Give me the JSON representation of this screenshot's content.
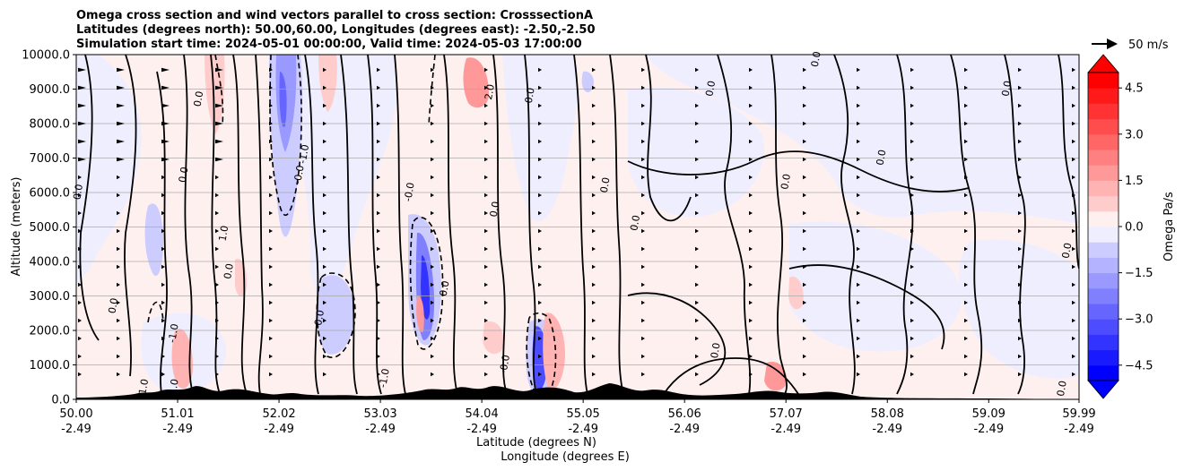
{
  "title_lines": [
    "Omega cross section and wind vectors parallel to cross section: CrosssectionA",
    "Latitudes (degrees north): 50.00,60.00, Longitudes (degrees east): -2.50,-2.50",
    "Simulation start time: 2024-05-01 00:00:00, Valid time: 2024-05-03 17:00:00"
  ],
  "quiver_key": "50 m/s",
  "chart_data": {
    "type": "contourf",
    "title": "Omega cross section and wind vectors parallel to cross section: CrosssectionA",
    "xlabel_lines": [
      "Latitude (degrees N)",
      "Longitude (degrees E)"
    ],
    "ylabel": "Altitude (meters)",
    "ylim": [
      0,
      10000
    ],
    "y_ticks": [
      "0.0",
      "1000.0",
      "2000.0",
      "3000.0",
      "4000.0",
      "5000.0",
      "6000.0",
      "7000.0",
      "8000.0",
      "9000.0",
      "10000.0"
    ],
    "y_tick_values": [
      0,
      1000,
      2000,
      3000,
      4000,
      5000,
      6000,
      7000,
      8000,
      9000,
      10000
    ],
    "x_range": [
      50.0,
      59.99
    ],
    "x_tick_lat": [
      "50.00",
      "51.01",
      "52.02",
      "53.03",
      "54.04",
      "55.05",
      "56.06",
      "57.07",
      "58.08",
      "59.09",
      "59.99"
    ],
    "x_tick_lon": [
      "-2.49",
      "-2.49",
      "-2.49",
      "-2.49",
      "-2.49",
      "-2.49",
      "-2.49",
      "-2.49",
      "-2.49",
      "-2.49",
      "-2.49"
    ],
    "x_tick_values": [
      50.0,
      51.01,
      52.02,
      53.03,
      54.04,
      55.05,
      56.06,
      57.07,
      58.08,
      59.09,
      59.99
    ],
    "colorbar": {
      "label": "Omega Pa/s",
      "range": [
        -5.0,
        5.0
      ],
      "ticks": [
        "4.5",
        "3.0",
        "1.5",
        "0.0",
        "−1.5",
        "−3.0",
        "−4.5"
      ],
      "tick_values": [
        4.5,
        3.0,
        1.5,
        0.0,
        -1.5,
        -3.0,
        -4.5
      ],
      "levels": [
        -5.0,
        -4.5,
        -4.0,
        -3.5,
        -3.0,
        -2.5,
        -2.0,
        -1.5,
        -1.0,
        -0.5,
        0.0,
        0.5,
        1.0,
        1.5,
        2.0,
        2.5,
        3.0,
        3.5,
        4.0,
        4.5,
        5.0
      ],
      "colors": [
        "#0000ff",
        "#1a1aff",
        "#3333ff",
        "#4d4dff",
        "#6666ff",
        "#8080ff",
        "#9999ff",
        "#b3b3ff",
        "#ccccff",
        "#eeeeff",
        "#fff0f0",
        "#ffcccc",
        "#ffb3b3",
        "#ff9999",
        "#ff8080",
        "#ff6666",
        "#ff4d4d",
        "#ff3333",
        "#ff1a1a",
        "#ff0000"
      ]
    },
    "contour_labels": [
      {
        "text": "0.0",
        "lat": 50.05,
        "alt": 6000
      },
      {
        "text": "0.0",
        "lat": 50.4,
        "alt": 2700
      },
      {
        "text": "-1.0",
        "lat": 50.7,
        "alt": 300
      },
      {
        "text": "-1.0",
        "lat": 51.0,
        "alt": 300
      },
      {
        "text": "0.0",
        "lat": 51.25,
        "alt": 8700
      },
      {
        "text": "0.0",
        "lat": 51.1,
        "alt": 6500
      },
      {
        "text": "-1.0",
        "lat": 51.0,
        "alt": 1900
      },
      {
        "text": "1.0",
        "lat": 51.5,
        "alt": 4800
      },
      {
        "text": "0.0",
        "lat": 51.55,
        "alt": 3700
      },
      {
        "text": "-0.0",
        "lat": 52.25,
        "alt": 6500
      },
      {
        "text": "-0.0",
        "lat": 52.45,
        "alt": 2300
      },
      {
        "text": "-1.0",
        "lat": 52.3,
        "alt": 7100
      },
      {
        "text": "-0.0",
        "lat": 53.35,
        "alt": 6000
      },
      {
        "text": "-1.0",
        "lat": 53.1,
        "alt": 600
      },
      {
        "text": "0.0",
        "lat": 53.7,
        "alt": 3200
      },
      {
        "text": "0.0",
        "lat": 54.2,
        "alt": 5500
      },
      {
        "text": "-0.0",
        "lat": 54.3,
        "alt": 1000
      },
      {
        "text": "2.0",
        "lat": 54.15,
        "alt": 8900
      },
      {
        "text": "0.0",
        "lat": 54.55,
        "alt": 8800
      },
      {
        "text": "0.0",
        "lat": 55.3,
        "alt": 6200
      },
      {
        "text": "0.0",
        "lat": 55.6,
        "alt": 5100
      },
      {
        "text": "0.0",
        "lat": 56.4,
        "alt": 1400
      },
      {
        "text": "0.0",
        "lat": 56.35,
        "alt": 9000
      },
      {
        "text": "0.0",
        "lat": 57.1,
        "alt": 6300
      },
      {
        "text": "0.0",
        "lat": 57.4,
        "alt": 9850
      },
      {
        "text": "0.0",
        "lat": 58.05,
        "alt": 7000
      },
      {
        "text": "0.0",
        "lat": 59.3,
        "alt": 9000
      },
      {
        "text": "0.0",
        "lat": 59.9,
        "alt": 4300
      },
      {
        "text": "0.0",
        "lat": 59.85,
        "alt": 300
      }
    ]
  }
}
